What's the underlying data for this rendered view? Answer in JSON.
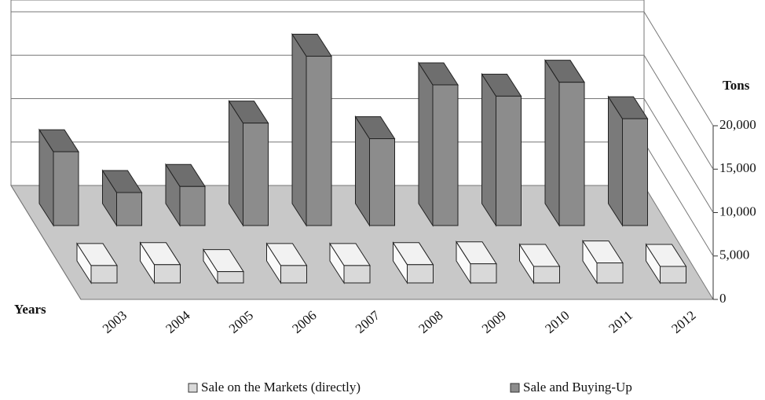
{
  "chart_data": {
    "type": "bar3d",
    "y_label": "Tons",
    "x_label": "Years",
    "categories": [
      "2003",
      "2004",
      "2005",
      "2006",
      "2007",
      "2008",
      "2009",
      "2010",
      "2011",
      "2012"
    ],
    "series": [
      {
        "name": "Sale on the Markets (directly)",
        "color": "#d9d9d9",
        "values": [
          2000,
          2100,
          1300,
          2000,
          2000,
          2100,
          2200,
          1900,
          2300,
          1900
        ]
      },
      {
        "name": "Sale and Buying-Up",
        "color": "#8c8c8c",
        "values": [
          8500,
          3800,
          4500,
          11800,
          19500,
          10000,
          16200,
          14900,
          16500,
          12300
        ]
      }
    ],
    "ylim": [
      0,
      20000
    ],
    "yticks": [
      0,
      {
        "value": 5000,
        "label": "5,000"
      },
      {
        "value": 10000,
        "label": "10,000"
      },
      {
        "value": 15000,
        "label": "15,000"
      },
      {
        "value": 20000,
        "label": "20,000"
      }
    ],
    "grid": true
  }
}
